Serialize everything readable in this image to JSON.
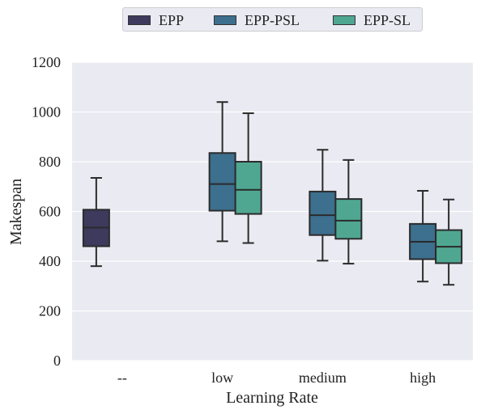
{
  "chart_data": {
    "type": "box",
    "xlabel": "Learning Rate",
    "ylabel": "Makespan",
    "ylim": [
      0,
      1200
    ],
    "yticks": [
      0,
      200,
      400,
      600,
      800,
      1000,
      1200
    ],
    "categories": [
      "--",
      "low",
      "medium",
      "high"
    ],
    "grid": "horizontal",
    "legend_position": "top-center",
    "series": [
      {
        "name": "EPP",
        "color": "#3e3a5e",
        "boxes": [
          {
            "category": "--",
            "whisker_low": 380,
            "q1": 460,
            "median": 535,
            "q3": 607,
            "whisker_high": 735
          }
        ]
      },
      {
        "name": "EPP-PSL",
        "color": "#3d6f8e",
        "boxes": [
          {
            "category": "low",
            "whisker_low": 480,
            "q1": 603,
            "median": 710,
            "q3": 835,
            "whisker_high": 1040
          },
          {
            "category": "medium",
            "whisker_low": 402,
            "q1": 505,
            "median": 585,
            "q3": 680,
            "whisker_high": 848
          },
          {
            "category": "high",
            "whisker_low": 318,
            "q1": 408,
            "median": 478,
            "q3": 550,
            "whisker_high": 683
          }
        ]
      },
      {
        "name": "EPP-SL",
        "color": "#4fa792",
        "boxes": [
          {
            "category": "low",
            "whisker_low": 473,
            "q1": 590,
            "median": 687,
            "q3": 800,
            "whisker_high": 995
          },
          {
            "category": "medium",
            "whisker_low": 390,
            "q1": 490,
            "median": 563,
            "q3": 650,
            "whisker_high": 807
          },
          {
            "category": "high",
            "whisker_low": 305,
            "q1": 392,
            "median": 458,
            "q3": 525,
            "whisker_high": 648
          }
        ]
      }
    ]
  }
}
